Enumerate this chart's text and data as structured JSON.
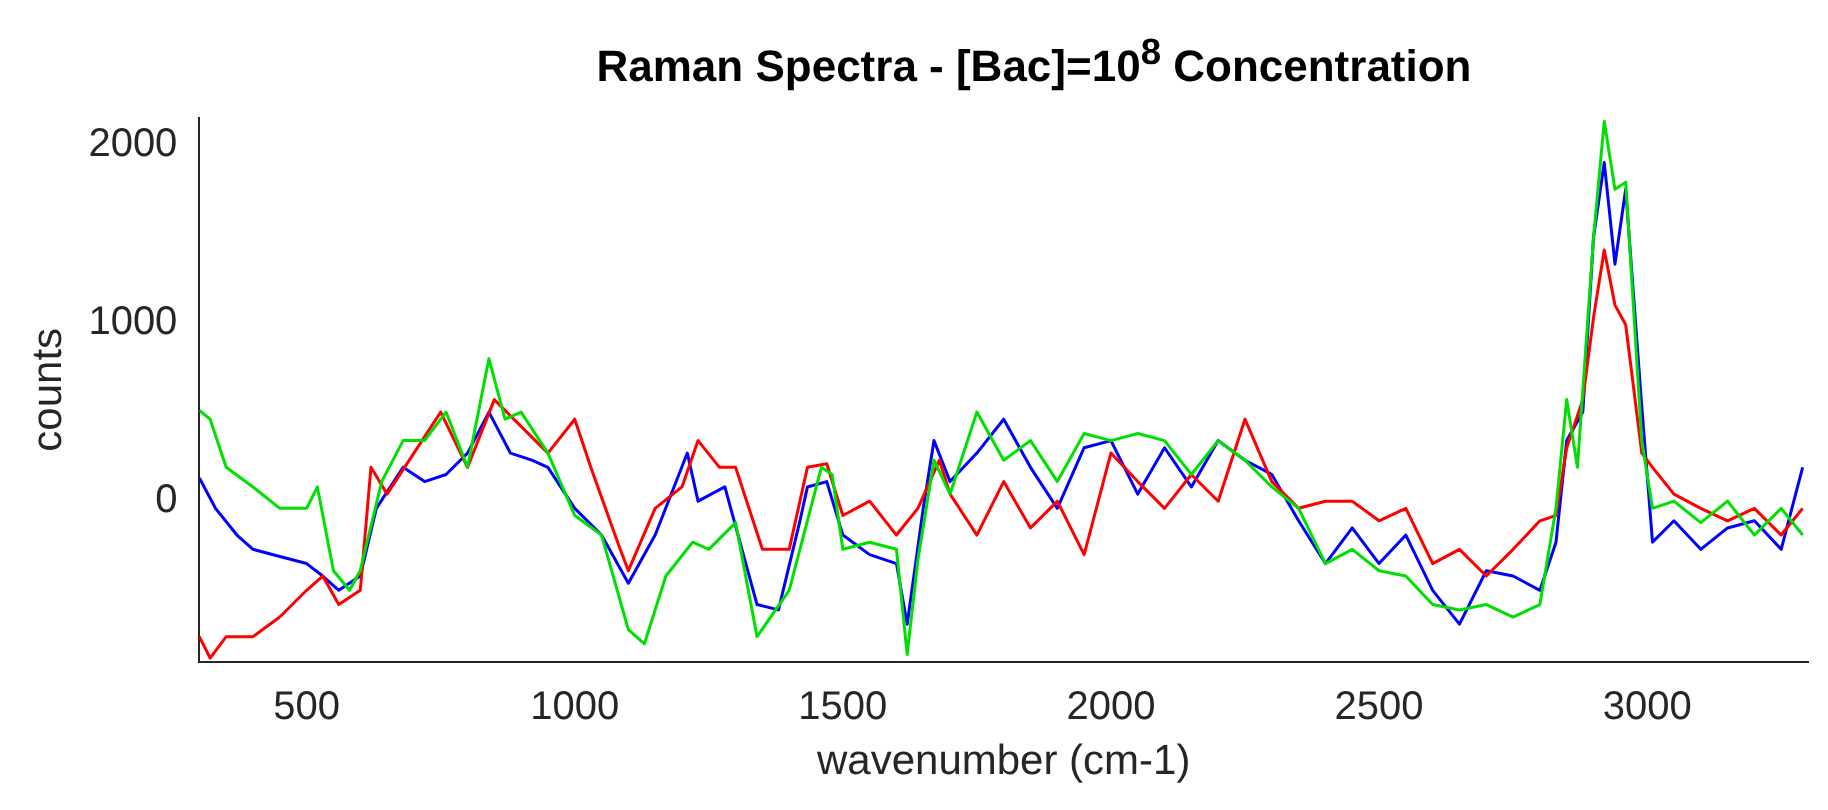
{
  "chart_data": {
    "type": "line",
    "title": "Raman Spectra - [Bac]=10$^{8}$ Concentration",
    "xlabel": "wavenumber (cm-1)",
    "ylabel": "counts",
    "xlim": [
      300,
      3300
    ],
    "ylim": [
      -900,
      2150
    ],
    "xticks": [
      500,
      1000,
      1500,
      2000,
      2500,
      3000
    ],
    "yticks": [
      0,
      1000,
      2000
    ],
    "grid": false,
    "legend": false,
    "marker": "none",
    "line_style": "solid",
    "series": [
      {
        "color": "#00e000",
        "x": [
          300,
          320,
          350,
          400,
          450,
          500,
          520,
          550,
          580,
          600,
          640,
          680,
          720,
          760,
          800,
          840,
          870,
          900,
          950,
          1000,
          1050,
          1100,
          1130,
          1170,
          1220,
          1250,
          1300,
          1340,
          1400,
          1460,
          1480,
          1500,
          1550,
          1600,
          1620,
          1640,
          1670,
          1700,
          1750,
          1800,
          1850,
          1900,
          1950,
          2000,
          2050,
          2100,
          2150,
          2200,
          2250,
          2300,
          2350,
          2400,
          2450,
          2500,
          2550,
          2600,
          2650,
          2700,
          2750,
          2800,
          2830,
          2850,
          2870,
          2900,
          2920,
          2940,
          2960,
          2990,
          3010,
          3050,
          3100,
          3150,
          3200,
          3250,
          3290
        ],
        "values": [
          510,
          460,
          190,
          80,
          -40,
          -40,
          80,
          -390,
          -500,
          -390,
          110,
          340,
          340,
          500,
          190,
          800,
          460,
          500,
          270,
          -80,
          -190,
          -720,
          -800,
          -420,
          -230,
          -270,
          -120,
          -760,
          -500,
          190,
          150,
          -270,
          -230,
          -270,
          -860,
          -330,
          230,
          40,
          500,
          230,
          340,
          110,
          380,
          340,
          380,
          340,
          150,
          340,
          230,
          80,
          -40,
          -350,
          -270,
          -390,
          -420,
          -580,
          -610,
          -580,
          -650,
          -580,
          -40,
          570,
          190,
          1480,
          2130,
          1750,
          1790,
          340,
          -40,
          0,
          -120,
          0,
          -190,
          -40,
          -190
        ]
      },
      {
        "color": "#ff0000",
        "x": [
          300,
          320,
          350,
          400,
          450,
          500,
          530,
          560,
          600,
          620,
          650,
          700,
          750,
          800,
          850,
          900,
          950,
          1000,
          1030,
          1080,
          1100,
          1150,
          1200,
          1230,
          1270,
          1300,
          1350,
          1400,
          1434,
          1470,
          1500,
          1550,
          1600,
          1640,
          1680,
          1700,
          1750,
          1800,
          1850,
          1900,
          1950,
          2000,
          2050,
          2100,
          2150,
          2200,
          2250,
          2300,
          2350,
          2400,
          2450,
          2500,
          2550,
          2600,
          2650,
          2700,
          2750,
          2800,
          2830,
          2850,
          2880,
          2900,
          2920,
          2940,
          2960,
          2990,
          3010,
          3050,
          3100,
          3150,
          3200,
          3250,
          3290
        ],
        "values": [
          -760,
          -880,
          -760,
          -760,
          -650,
          -500,
          -420,
          -580,
          -500,
          190,
          40,
          270,
          500,
          190,
          570,
          420,
          270,
          460,
          190,
          -230,
          -390,
          -40,
          80,
          340,
          190,
          190,
          -270,
          -270,
          190,
          210,
          -80,
          0,
          -190,
          -40,
          230,
          40,
          -190,
          110,
          -150,
          0,
          -300,
          270,
          110,
          -40,
          150,
          0,
          460,
          110,
          -40,
          0,
          0,
          -110,
          -40,
          -350,
          -270,
          -420,
          -270,
          -110,
          -80,
          300,
          570,
          1030,
          1410,
          1100,
          990,
          270,
          190,
          40,
          -40,
          -110,
          -40,
          -190,
          -40
        ]
      },
      {
        "color": "#0000ff",
        "x": [
          300,
          330,
          370,
          400,
          450,
          500,
          530,
          560,
          600,
          630,
          680,
          720,
          760,
          800,
          840,
          880,
          920,
          950,
          1000,
          1050,
          1100,
          1150,
          1210,
          1230,
          1280,
          1340,
          1380,
          1420,
          1434,
          1470,
          1500,
          1550,
          1600,
          1620,
          1650,
          1670,
          1700,
          1750,
          1800,
          1850,
          1900,
          1950,
          2000,
          2050,
          2100,
          2150,
          2200,
          2250,
          2300,
          2350,
          2400,
          2450,
          2500,
          2550,
          2600,
          2650,
          2700,
          2750,
          2800,
          2830,
          2850,
          2880,
          2900,
          2920,
          2940,
          2960,
          2990,
          3010,
          3050,
          3100,
          3150,
          3200,
          3250,
          3290
        ],
        "values": [
          130,
          -40,
          -190,
          -270,
          -310,
          -350,
          -420,
          -500,
          -420,
          -40,
          190,
          110,
          150,
          270,
          500,
          270,
          230,
          190,
          -40,
          -190,
          -460,
          -190,
          270,
          0,
          80,
          -580,
          -610,
          -110,
          80,
          110,
          -190,
          -300,
          -350,
          -690,
          -40,
          340,
          110,
          270,
          460,
          190,
          -40,
          300,
          340,
          40,
          300,
          80,
          340,
          230,
          150,
          -110,
          -350,
          -150,
          -350,
          -190,
          -500,
          -690,
          -390,
          -420,
          -500,
          -230,
          340,
          500,
          1480,
          1900,
          1330,
          1750,
          530,
          -230,
          -110,
          -270,
          -150,
          -110,
          -270,
          190
        ]
      }
    ]
  }
}
